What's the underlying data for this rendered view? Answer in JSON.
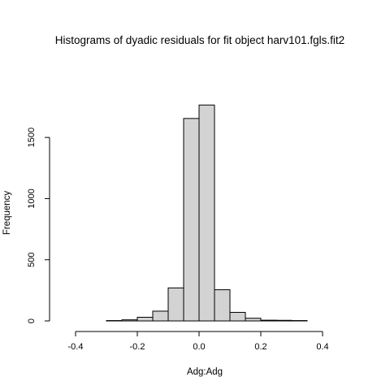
{
  "chart_data": {
    "type": "bar",
    "title": "Histograms of dyadic residuals for fit object  harv101.fgls.fit2",
    "xlabel": "Adg:Adg",
    "ylabel": "Frequency",
    "xlim": [
      -0.45,
      0.5
    ],
    "ylim": [
      0,
      1780
    ],
    "x_ticks": [
      -0.4,
      -0.2,
      0.0,
      0.2,
      0.4
    ],
    "x_tick_labels": [
      "-0.4",
      "-0.2",
      "0.0",
      "0.2",
      "0.4"
    ],
    "y_ticks": [
      0,
      500,
      1000,
      1500
    ],
    "y_tick_labels": [
      "0",
      "500",
      "1000",
      "1500"
    ],
    "bin_edges": [
      -0.45,
      -0.4,
      -0.35,
      -0.3,
      -0.25,
      -0.2,
      -0.15,
      -0.1,
      -0.05,
      0.0,
      0.05,
      0.1,
      0.15,
      0.2,
      0.25,
      0.3,
      0.35,
      0.4,
      0.45,
      0.5
    ],
    "values": [
      0,
      0,
      0,
      3,
      9,
      30,
      80,
      270,
      1655,
      1765,
      255,
      70,
      22,
      6,
      5,
      3,
      0,
      0,
      0
    ],
    "bar_fill": "#d3d3d3",
    "bar_stroke": "#000000"
  }
}
